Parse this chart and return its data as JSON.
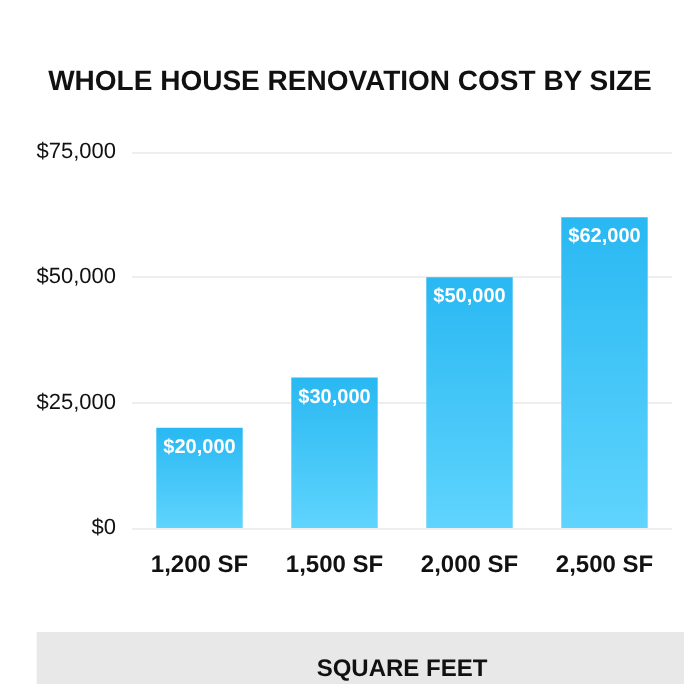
{
  "chart_data": {
    "type": "bar",
    "title": "WHOLE HOUSE RENOVATION COST BY SIZE",
    "xlabel": "SQUARE FEET",
    "categories": [
      "1,200 SF",
      "1,500 SF",
      "2,000 SF",
      "2,500 SF"
    ],
    "values": [
      20000,
      30000,
      50000,
      62000
    ],
    "value_labels": [
      "$20,000",
      "$30,000",
      "$50,000",
      "$62,000"
    ],
    "color": "#29b8f2",
    "ylim": [
      0,
      75000
    ],
    "yticks": [
      {
        "value": 0,
        "label": "$0"
      },
      {
        "value": 25000,
        "label": "$25,000"
      },
      {
        "value": 50000,
        "label": "$50,000"
      },
      {
        "value": 75000,
        "label": "$75,000"
      }
    ],
    "grid": "y"
  }
}
